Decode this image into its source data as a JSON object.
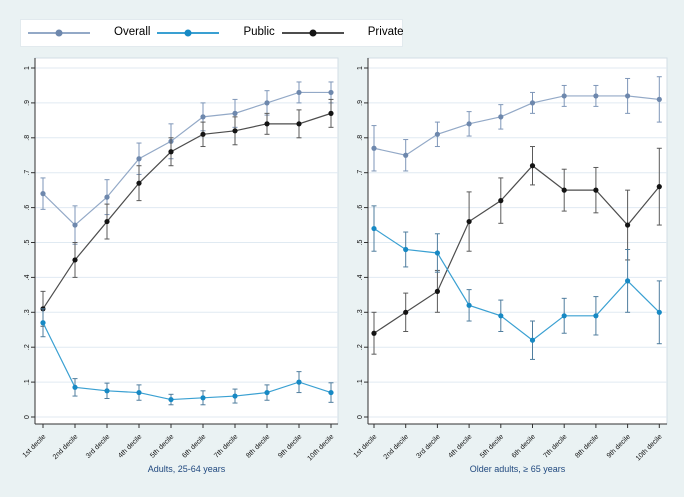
{
  "figure": {
    "background": "#eaf2f3",
    "plot_background": "#ffffff",
    "plot_border": "#d3dee6",
    "grid_color": "#e0eaf2",
    "axis_color": "#303030",
    "tick_label_color": "#111111",
    "caption_color": "#21497f",
    "legend": [
      {
        "label": "Overall"
      },
      {
        "label": "Public"
      },
      {
        "label": "Private"
      }
    ],
    "colors": {
      "Overall": {
        "line": "#93a9c7",
        "marker": "#6e88ad",
        "error": "#7e96b8"
      },
      "Public": {
        "line": "#3aa0d2",
        "marker": "#1789c4",
        "error": "#4f7d9e"
      },
      "Private": {
        "line": "#4d4d4d",
        "marker": "#141414",
        "error": "#5a5a5a"
      }
    }
  },
  "chart_data": [
    {
      "type": "line",
      "title": "Adults, 25-64 years",
      "categories": [
        "1st decile",
        "2nd decile",
        "3rd decile",
        "4th decile",
        "5th decile",
        "6th decile",
        "7th decile",
        "8th decile",
        "9th decile",
        "10th decile"
      ],
      "yticks": [
        "0",
        ".1",
        ".2",
        ".3",
        ".4",
        ".5",
        ".6",
        ".7",
        ".8",
        ".9",
        "1"
      ],
      "ylim": [
        0,
        1
      ],
      "grid": true,
      "legend_position": "top",
      "error_bars": true,
      "series": [
        {
          "name": "Overall",
          "values": [
            0.64,
            0.55,
            0.63,
            0.74,
            0.79,
            0.86,
            0.87,
            0.9,
            0.93,
            0.93
          ],
          "errors": [
            0.045,
            0.055,
            0.05,
            0.045,
            0.05,
            0.04,
            0.04,
            0.035,
            0.03,
            0.03
          ]
        },
        {
          "name": "Private",
          "values": [
            0.31,
            0.45,
            0.56,
            0.67,
            0.76,
            0.81,
            0.82,
            0.84,
            0.84,
            0.87
          ],
          "errors": [
            0.05,
            0.05,
            0.05,
            0.05,
            0.04,
            0.035,
            0.04,
            0.03,
            0.04,
            0.04
          ]
        },
        {
          "name": "Public",
          "values": [
            0.27,
            0.085,
            0.075,
            0.07,
            0.05,
            0.055,
            0.06,
            0.07,
            0.1,
            0.07
          ],
          "errors": [
            0.04,
            0.025,
            0.022,
            0.022,
            0.015,
            0.02,
            0.02,
            0.022,
            0.03,
            0.028
          ]
        }
      ]
    },
    {
      "type": "line",
      "title": "Older adults, ≥ 65 years",
      "categories": [
        "1st decile",
        "2nd decile",
        "3rd decile",
        "4th decile",
        "5th decile",
        "6th decile",
        "7th decile",
        "8th decile",
        "9th decile",
        "10th decile"
      ],
      "yticks": [
        "0",
        ".1",
        ".2",
        ".3",
        ".4",
        ".5",
        ".6",
        ".7",
        ".8",
        ".9",
        "1"
      ],
      "ylim": [
        0,
        1
      ],
      "grid": true,
      "legend_position": "top",
      "error_bars": true,
      "series": [
        {
          "name": "Overall",
          "values": [
            0.77,
            0.75,
            0.81,
            0.84,
            0.86,
            0.9,
            0.92,
            0.92,
            0.92,
            0.91
          ],
          "errors": [
            0.065,
            0.045,
            0.035,
            0.035,
            0.035,
            0.03,
            0.03,
            0.03,
            0.05,
            0.065
          ]
        },
        {
          "name": "Private",
          "values": [
            0.24,
            0.3,
            0.36,
            0.56,
            0.62,
            0.72,
            0.65,
            0.65,
            0.55,
            0.66
          ],
          "errors": [
            0.06,
            0.055,
            0.06,
            0.085,
            0.065,
            0.055,
            0.06,
            0.065,
            0.1,
            0.11
          ]
        },
        {
          "name": "Public",
          "values": [
            0.54,
            0.48,
            0.47,
            0.32,
            0.29,
            0.22,
            0.29,
            0.29,
            0.39,
            0.3
          ],
          "errors": [
            0.065,
            0.05,
            0.055,
            0.045,
            0.045,
            0.055,
            0.05,
            0.055,
            0.09,
            0.09
          ]
        }
      ]
    }
  ]
}
